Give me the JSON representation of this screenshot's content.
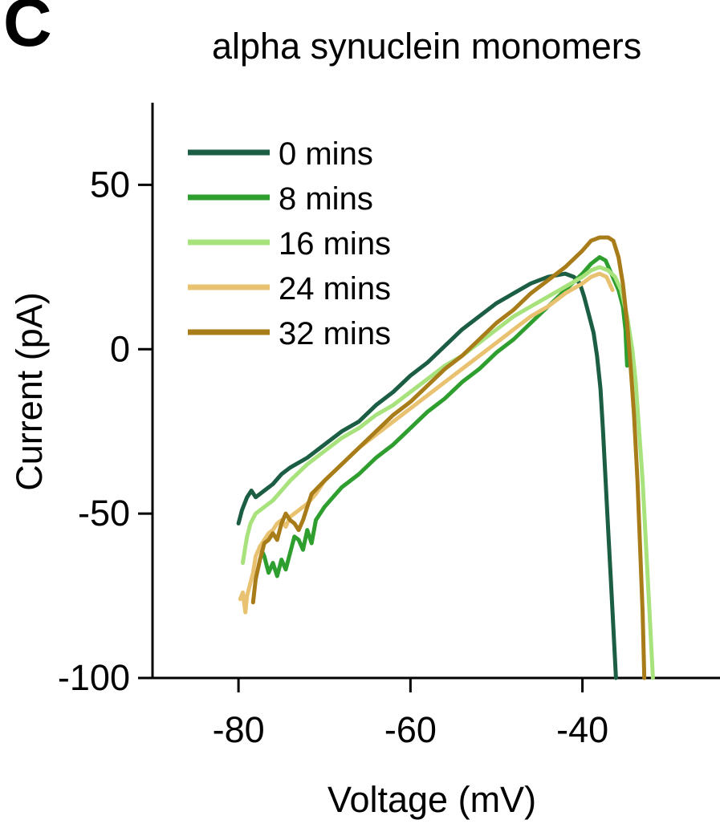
{
  "panel_label": "C",
  "chart_data": {
    "type": "line",
    "title": "alpha synuclein monomers",
    "xlabel": "Voltage (mV)",
    "ylabel": "Current (pA)",
    "xlim": [
      -90,
      -24
    ],
    "ylim": [
      -100,
      75
    ],
    "xticks": [
      -80,
      -60,
      -40
    ],
    "yticks": [
      50,
      0,
      -50,
      -100
    ],
    "xtick_labels": [
      "-80",
      "-60",
      "-40"
    ],
    "ytick_labels": [
      "50",
      "0",
      "-50",
      "-100"
    ],
    "grid": false,
    "legend_position": "top-left",
    "series": [
      {
        "name": "0 mins",
        "color": "#1b5e43",
        "points": [
          [
            -80,
            -53
          ],
          [
            -79.6,
            -49
          ],
          [
            -79,
            -45
          ],
          [
            -78.5,
            -43
          ],
          [
            -78,
            -45
          ],
          [
            -77,
            -43
          ],
          [
            -76,
            -41
          ],
          [
            -75,
            -38
          ],
          [
            -74,
            -36
          ],
          [
            -72,
            -33
          ],
          [
            -70,
            -29
          ],
          [
            -68,
            -25
          ],
          [
            -66,
            -22
          ],
          [
            -64,
            -17
          ],
          [
            -62,
            -13
          ],
          [
            -60,
            -8
          ],
          [
            -58,
            -4
          ],
          [
            -56,
            1
          ],
          [
            -54,
            6
          ],
          [
            -52,
            10
          ],
          [
            -50,
            14
          ],
          [
            -48,
            17
          ],
          [
            -46,
            20
          ],
          [
            -44,
            22
          ],
          [
            -42,
            23
          ],
          [
            -41,
            22
          ],
          [
            -40.3,
            20
          ],
          [
            -39.8,
            16
          ],
          [
            -39.2,
            10
          ],
          [
            -38.7,
            5
          ],
          [
            -38.3,
            -2
          ],
          [
            -37.9,
            -12
          ],
          [
            -37.6,
            -25
          ],
          [
            -37.3,
            -40
          ],
          [
            -37.0,
            -55
          ],
          [
            -36.7,
            -70
          ],
          [
            -36.4,
            -85
          ],
          [
            -36.1,
            -100
          ]
        ]
      },
      {
        "name": "8 mins",
        "color": "#2e9e2e",
        "points": [
          [
            -77.5,
            -60
          ],
          [
            -77,
            -63
          ],
          [
            -76.5,
            -68
          ],
          [
            -76,
            -65
          ],
          [
            -75.5,
            -69
          ],
          [
            -75,
            -64
          ],
          [
            -74.5,
            -67
          ],
          [
            -74,
            -62
          ],
          [
            -73.5,
            -57
          ],
          [
            -73,
            -58
          ],
          [
            -72.5,
            -61
          ],
          [
            -72,
            -55
          ],
          [
            -71.5,
            -59
          ],
          [
            -71,
            -52
          ],
          [
            -70,
            -48
          ],
          [
            -68,
            -42
          ],
          [
            -66,
            -38
          ],
          [
            -64,
            -33
          ],
          [
            -62,
            -29
          ],
          [
            -60,
            -24
          ],
          [
            -58,
            -19
          ],
          [
            -56,
            -15
          ],
          [
            -54,
            -10
          ],
          [
            -52,
            -6
          ],
          [
            -50,
            -1
          ],
          [
            -48,
            3
          ],
          [
            -46,
            8
          ],
          [
            -44,
            13
          ],
          [
            -42,
            18
          ],
          [
            -40,
            23
          ],
          [
            -39,
            26
          ],
          [
            -38,
            28
          ],
          [
            -37.3,
            27
          ],
          [
            -36.8,
            24
          ],
          [
            -36.3,
            21
          ],
          [
            -35.8,
            18
          ],
          [
            -35.3,
            13
          ],
          [
            -35.0,
            6
          ],
          [
            -34.8,
            -5
          ]
        ]
      },
      {
        "name": "16 mins",
        "color": "#a8e27c",
        "points": [
          [
            -79.5,
            -65
          ],
          [
            -79.2,
            -60
          ],
          [
            -79,
            -57
          ],
          [
            -78.6,
            -53
          ],
          [
            -78,
            -50
          ],
          [
            -77.5,
            -49
          ],
          [
            -77,
            -48
          ],
          [
            -76,
            -46
          ],
          [
            -75,
            -43
          ],
          [
            -74,
            -40
          ],
          [
            -72,
            -35
          ],
          [
            -70,
            -31
          ],
          [
            -68,
            -27
          ],
          [
            -66,
            -24
          ],
          [
            -64,
            -20
          ],
          [
            -62,
            -17
          ],
          [
            -60,
            -13
          ],
          [
            -58,
            -9
          ],
          [
            -56,
            -5
          ],
          [
            -54,
            -2
          ],
          [
            -52,
            2
          ],
          [
            -50,
            6
          ],
          [
            -48,
            10
          ],
          [
            -46,
            13
          ],
          [
            -44,
            16
          ],
          [
            -42,
            19
          ],
          [
            -40,
            22
          ],
          [
            -39,
            24
          ],
          [
            -38,
            25
          ],
          [
            -37,
            24
          ],
          [
            -36.2,
            22
          ],
          [
            -35.5,
            18
          ],
          [
            -34.8,
            10
          ],
          [
            -34.2,
            0
          ],
          [
            -33.8,
            -10
          ],
          [
            -33.4,
            -25
          ],
          [
            -33.0,
            -40
          ],
          [
            -32.6,
            -60
          ],
          [
            -32.2,
            -80
          ],
          [
            -31.8,
            -100
          ]
        ]
      },
      {
        "name": "24 mins",
        "color": "#e9c271",
        "points": [
          [
            -79.8,
            -76
          ],
          [
            -79.5,
            -74
          ],
          [
            -79.2,
            -80
          ],
          [
            -79,
            -75
          ],
          [
            -78.7,
            -72
          ],
          [
            -78.3,
            -68
          ],
          [
            -78,
            -63
          ],
          [
            -77.5,
            -60
          ],
          [
            -77,
            -58
          ],
          [
            -76.5,
            -56
          ],
          [
            -76,
            -55
          ],
          [
            -75.5,
            -53
          ],
          [
            -75,
            -52
          ],
          [
            -74.5,
            -54
          ],
          [
            -74,
            -51
          ],
          [
            -73,
            -49
          ],
          [
            -72,
            -47
          ],
          [
            -71,
            -44
          ],
          [
            -70,
            -40
          ],
          [
            -68,
            -35
          ],
          [
            -66,
            -30
          ],
          [
            -64,
            -26
          ],
          [
            -62,
            -22
          ],
          [
            -60,
            -18
          ],
          [
            -58,
            -14
          ],
          [
            -56,
            -10
          ],
          [
            -54,
            -6
          ],
          [
            -52,
            -2
          ],
          [
            -50,
            2
          ],
          [
            -48,
            6
          ],
          [
            -46,
            10
          ],
          [
            -44,
            13
          ],
          [
            -42,
            17
          ],
          [
            -40,
            20
          ],
          [
            -39,
            22
          ],
          [
            -38,
            23
          ],
          [
            -37.2,
            22
          ],
          [
            -36.5,
            18
          ]
        ]
      },
      {
        "name": "32 mins",
        "color": "#a87c19",
        "points": [
          [
            -78.3,
            -77
          ],
          [
            -78,
            -70
          ],
          [
            -77.5,
            -64
          ],
          [
            -77,
            -59
          ],
          [
            -76.5,
            -58
          ],
          [
            -76,
            -56
          ],
          [
            -75.5,
            -58
          ],
          [
            -75,
            -53
          ],
          [
            -74.5,
            -50
          ],
          [
            -74,
            -52
          ],
          [
            -73.5,
            -53
          ],
          [
            -73,
            -55
          ],
          [
            -72.5,
            -52
          ],
          [
            -72,
            -48
          ],
          [
            -71.5,
            -44
          ],
          [
            -70,
            -40
          ],
          [
            -68,
            -35
          ],
          [
            -66,
            -30
          ],
          [
            -64,
            -25
          ],
          [
            -62,
            -20
          ],
          [
            -60,
            -16
          ],
          [
            -58,
            -11
          ],
          [
            -56,
            -6
          ],
          [
            -54,
            -2
          ],
          [
            -52,
            3
          ],
          [
            -50,
            8
          ],
          [
            -48,
            12
          ],
          [
            -46,
            17
          ],
          [
            -44,
            21
          ],
          [
            -42,
            25
          ],
          [
            -40,
            30
          ],
          [
            -39,
            33
          ],
          [
            -38,
            34
          ],
          [
            -37,
            34
          ],
          [
            -36.4,
            33
          ],
          [
            -35.8,
            28
          ],
          [
            -35.3,
            20
          ],
          [
            -34.8,
            8
          ],
          [
            -34.4,
            -5
          ],
          [
            -34.0,
            -20
          ],
          [
            -33.6,
            -40
          ],
          [
            -33.3,
            -60
          ],
          [
            -33.0,
            -80
          ],
          [
            -32.8,
            -100
          ]
        ]
      }
    ]
  }
}
